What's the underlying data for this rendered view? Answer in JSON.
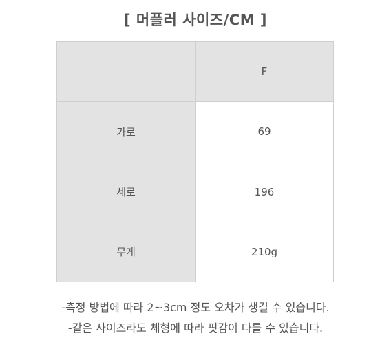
{
  "title": "[ 머플러 사이즈/CM ]",
  "table": {
    "header": [
      "",
      "F"
    ],
    "rows": [
      {
        "label": "가로",
        "value": "69"
      },
      {
        "label": "세로",
        "value": "196"
      },
      {
        "label": "무게",
        "value": "210g"
      }
    ]
  },
  "notes": [
    "-측정 방법에 따라 2~3cm 정도 오차가 생길 수 있습니다.",
    "-같은 사이즈라도 체형에 따라 핏감이 다를 수 있습니다."
  ],
  "colors": {
    "text": "#555555",
    "header_bg": "#e3e3e3",
    "border": "#cfcfcf"
  }
}
